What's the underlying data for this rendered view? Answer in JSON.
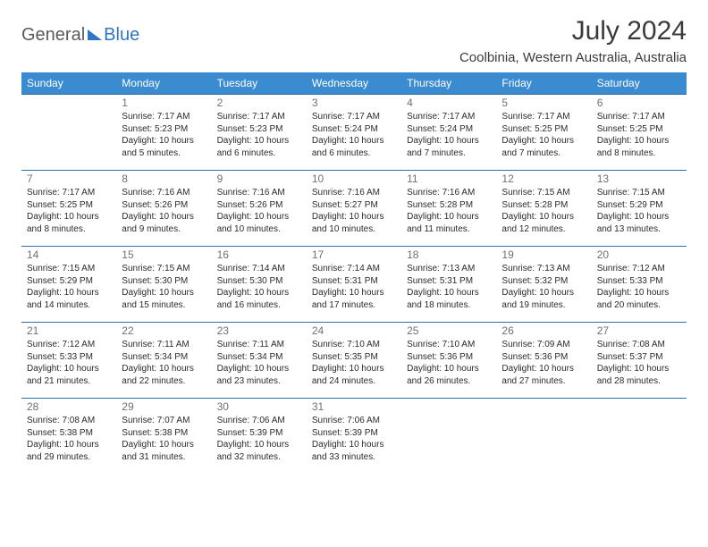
{
  "brand": {
    "part1": "General",
    "part2": "Blue"
  },
  "title": "July 2024",
  "location": "Coolbinia, Western Australia, Australia",
  "colors": {
    "header_bg": "#3b8bd0",
    "header_text": "#ffffff",
    "row_border": "#2e6fa8",
    "daynum": "#707070",
    "body_text": "#2b2b2b",
    "brand_gray": "#5a5a5a",
    "brand_blue": "#2f75c1"
  },
  "weekdays": [
    "Sunday",
    "Monday",
    "Tuesday",
    "Wednesday",
    "Thursday",
    "Friday",
    "Saturday"
  ],
  "weeks": [
    [
      null,
      {
        "n": "1",
        "sr": "7:17 AM",
        "ss": "5:23 PM",
        "dl": "10 hours and 5 minutes."
      },
      {
        "n": "2",
        "sr": "7:17 AM",
        "ss": "5:23 PM",
        "dl": "10 hours and 6 minutes."
      },
      {
        "n": "3",
        "sr": "7:17 AM",
        "ss": "5:24 PM",
        "dl": "10 hours and 6 minutes."
      },
      {
        "n": "4",
        "sr": "7:17 AM",
        "ss": "5:24 PM",
        "dl": "10 hours and 7 minutes."
      },
      {
        "n": "5",
        "sr": "7:17 AM",
        "ss": "5:25 PM",
        "dl": "10 hours and 7 minutes."
      },
      {
        "n": "6",
        "sr": "7:17 AM",
        "ss": "5:25 PM",
        "dl": "10 hours and 8 minutes."
      }
    ],
    [
      {
        "n": "7",
        "sr": "7:17 AM",
        "ss": "5:25 PM",
        "dl": "10 hours and 8 minutes."
      },
      {
        "n": "8",
        "sr": "7:16 AM",
        "ss": "5:26 PM",
        "dl": "10 hours and 9 minutes."
      },
      {
        "n": "9",
        "sr": "7:16 AM",
        "ss": "5:26 PM",
        "dl": "10 hours and 10 minutes."
      },
      {
        "n": "10",
        "sr": "7:16 AM",
        "ss": "5:27 PM",
        "dl": "10 hours and 10 minutes."
      },
      {
        "n": "11",
        "sr": "7:16 AM",
        "ss": "5:28 PM",
        "dl": "10 hours and 11 minutes."
      },
      {
        "n": "12",
        "sr": "7:15 AM",
        "ss": "5:28 PM",
        "dl": "10 hours and 12 minutes."
      },
      {
        "n": "13",
        "sr": "7:15 AM",
        "ss": "5:29 PM",
        "dl": "10 hours and 13 minutes."
      }
    ],
    [
      {
        "n": "14",
        "sr": "7:15 AM",
        "ss": "5:29 PM",
        "dl": "10 hours and 14 minutes."
      },
      {
        "n": "15",
        "sr": "7:15 AM",
        "ss": "5:30 PM",
        "dl": "10 hours and 15 minutes."
      },
      {
        "n": "16",
        "sr": "7:14 AM",
        "ss": "5:30 PM",
        "dl": "10 hours and 16 minutes."
      },
      {
        "n": "17",
        "sr": "7:14 AM",
        "ss": "5:31 PM",
        "dl": "10 hours and 17 minutes."
      },
      {
        "n": "18",
        "sr": "7:13 AM",
        "ss": "5:31 PM",
        "dl": "10 hours and 18 minutes."
      },
      {
        "n": "19",
        "sr": "7:13 AM",
        "ss": "5:32 PM",
        "dl": "10 hours and 19 minutes."
      },
      {
        "n": "20",
        "sr": "7:12 AM",
        "ss": "5:33 PM",
        "dl": "10 hours and 20 minutes."
      }
    ],
    [
      {
        "n": "21",
        "sr": "7:12 AM",
        "ss": "5:33 PM",
        "dl": "10 hours and 21 minutes."
      },
      {
        "n": "22",
        "sr": "7:11 AM",
        "ss": "5:34 PM",
        "dl": "10 hours and 22 minutes."
      },
      {
        "n": "23",
        "sr": "7:11 AM",
        "ss": "5:34 PM",
        "dl": "10 hours and 23 minutes."
      },
      {
        "n": "24",
        "sr": "7:10 AM",
        "ss": "5:35 PM",
        "dl": "10 hours and 24 minutes."
      },
      {
        "n": "25",
        "sr": "7:10 AM",
        "ss": "5:36 PM",
        "dl": "10 hours and 26 minutes."
      },
      {
        "n": "26",
        "sr": "7:09 AM",
        "ss": "5:36 PM",
        "dl": "10 hours and 27 minutes."
      },
      {
        "n": "27",
        "sr": "7:08 AM",
        "ss": "5:37 PM",
        "dl": "10 hours and 28 minutes."
      }
    ],
    [
      {
        "n": "28",
        "sr": "7:08 AM",
        "ss": "5:38 PM",
        "dl": "10 hours and 29 minutes."
      },
      {
        "n": "29",
        "sr": "7:07 AM",
        "ss": "5:38 PM",
        "dl": "10 hours and 31 minutes."
      },
      {
        "n": "30",
        "sr": "7:06 AM",
        "ss": "5:39 PM",
        "dl": "10 hours and 32 minutes."
      },
      {
        "n": "31",
        "sr": "7:06 AM",
        "ss": "5:39 PM",
        "dl": "10 hours and 33 minutes."
      },
      null,
      null,
      null
    ]
  ],
  "labels": {
    "sunrise": "Sunrise:",
    "sunset": "Sunset:",
    "daylight": "Daylight:"
  }
}
